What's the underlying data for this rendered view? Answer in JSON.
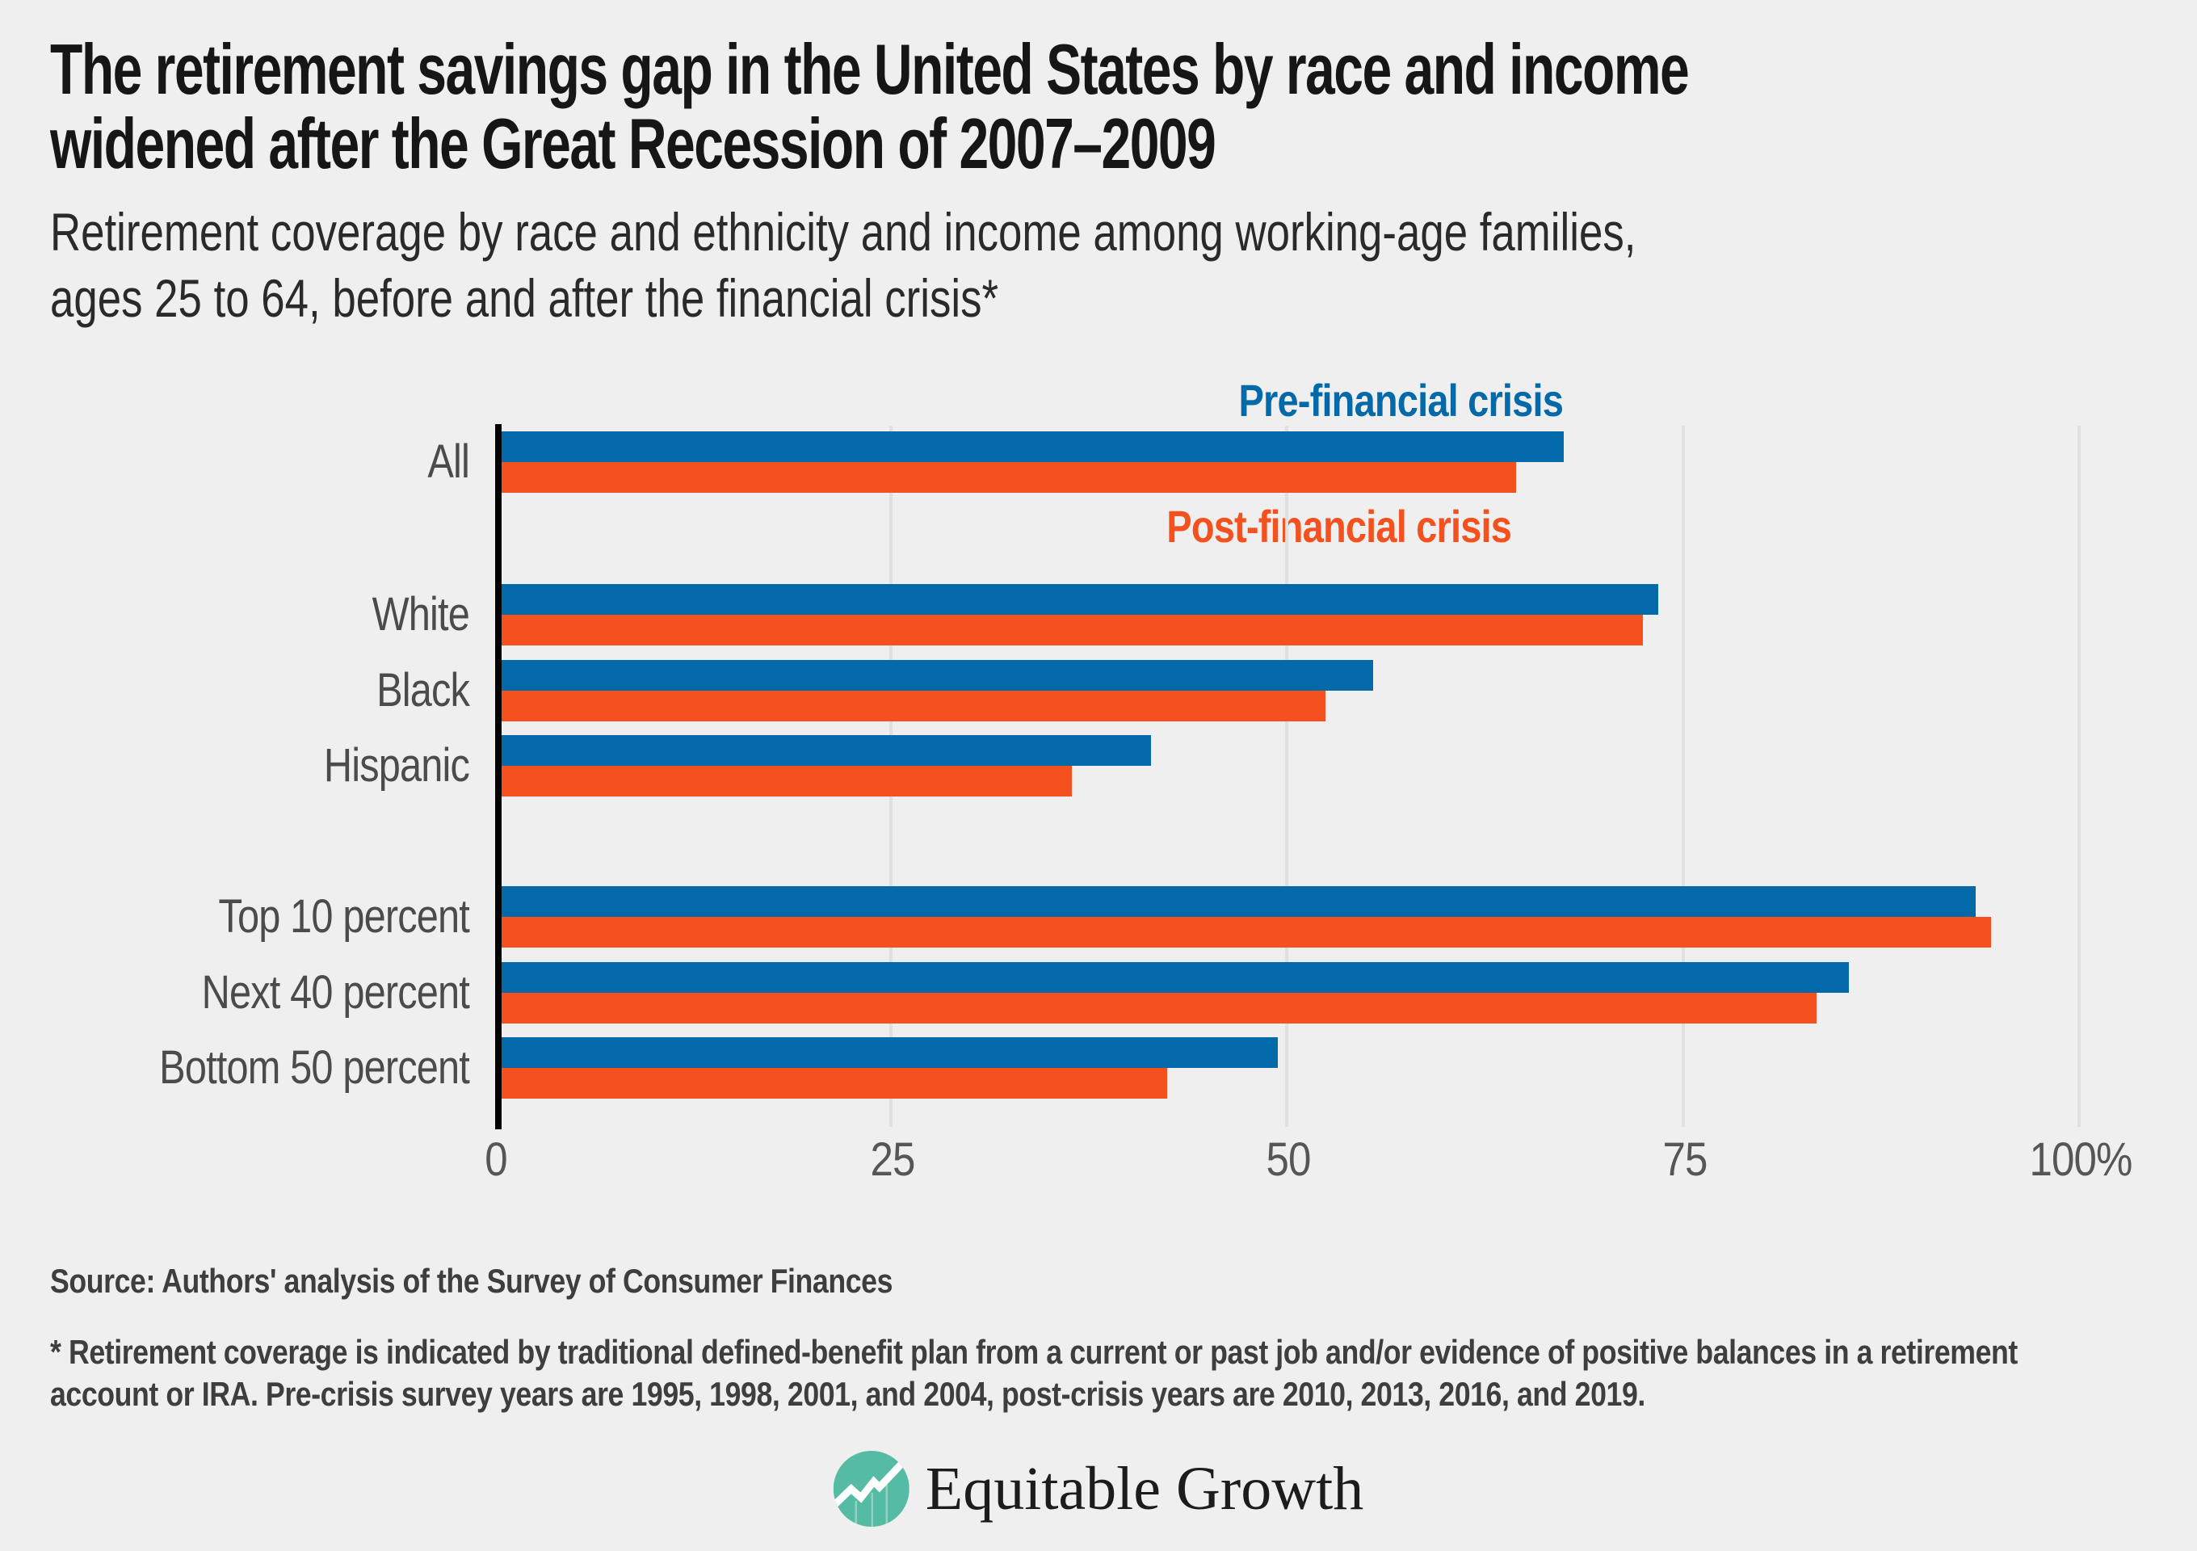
{
  "title_lines": [
    "The retirement savings gap in the United States by race and income",
    "widened after the Great Recession of 2007–2009"
  ],
  "subtitle_lines": [
    "Retirement coverage by race and ethnicity and income among working-age families,",
    "ages 25 to 64, before and after the financial crisis*"
  ],
  "source": "Source: Authors' analysis of the Survey of Consumer Finances",
  "footnote": "* Retirement coverage is indicated by traditional defined-benefit plan from a current or past job and/or evidence of positive balances in a retirement account or IRA. Pre-crisis survey years are 1995, 1998, 2001, and 2004, post-crisis years are 2010, 2013, 2016, and 2019.",
  "logo": {
    "text": "Equitable Growth",
    "icon": "trend-line-circle-icon",
    "icon_color": "#55BBA4",
    "text_color": "#1C1C1C"
  },
  "colors": {
    "background": "#EFEFEF",
    "pre_series": "#0469A8",
    "post_series": "#F4511E",
    "axis": "#000000",
    "gridline": "#E0E0E0",
    "category_label": "#4B4B4D",
    "tick_label": "#565658",
    "note_text": "#3E3E3E",
    "title_text": "#161616"
  },
  "chart_data": {
    "type": "bar",
    "orientation": "horizontal",
    "title": "Retirement coverage by race and ethnicity and income among working-age families, ages 25 to 64, before and after the financial crisis",
    "categories": [
      "All",
      "White",
      "Black",
      "Hispanic",
      "Top 10 percent",
      "Next 40 percent",
      "Bottom 50 percent"
    ],
    "category_groups": [
      [
        "All"
      ],
      [
        "White",
        "Black",
        "Hispanic"
      ],
      [
        "Top 10 percent",
        "Next 40 percent",
        "Bottom 50 percent"
      ]
    ],
    "series": [
      {
        "name": "Pre-financial crisis",
        "color": "#0469A8",
        "values": [
          67,
          73,
          55,
          41,
          93,
          85,
          49
        ]
      },
      {
        "name": "Post-financial crisis",
        "color": "#F4511E",
        "values": [
          64,
          72,
          52,
          36,
          94,
          83,
          42
        ]
      }
    ],
    "unit": "percent",
    "xlabel": "",
    "ylabel": "",
    "xlim": [
      0,
      100
    ],
    "xticks": [
      {
        "value": 0,
        "label": "0"
      },
      {
        "value": 25,
        "label": "25"
      },
      {
        "value": 50,
        "label": "50"
      },
      {
        "value": 75,
        "label": "75"
      },
      {
        "value": 100,
        "label": "100%"
      }
    ],
    "grid": "vertical",
    "legend_position": "inline-labels-near-first-bar-pair"
  }
}
